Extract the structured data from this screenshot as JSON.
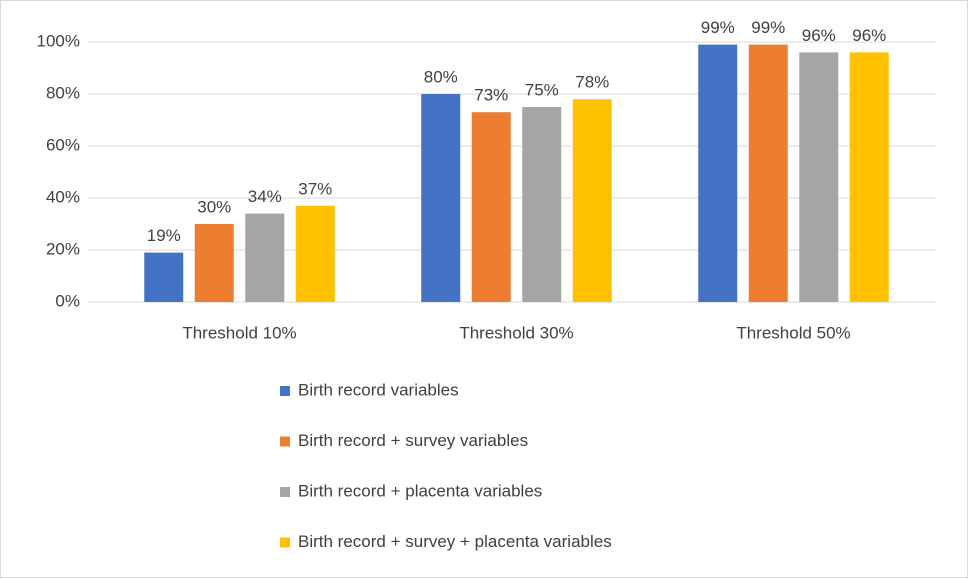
{
  "chart_data": {
    "type": "bar",
    "categories": [
      "Threshold 10%",
      "Threshold 30%",
      "Threshold 50%"
    ],
    "series": [
      {
        "name": "Birth record variables",
        "color": "#4472c4",
        "values": [
          19,
          80,
          99
        ],
        "value_labels": [
          "19%",
          "80%",
          "99%"
        ]
      },
      {
        "name": "Birth record + survey variables",
        "color": "#ed7d31",
        "values": [
          30,
          73,
          99
        ],
        "value_labels": [
          "30%",
          "73%",
          "99%"
        ]
      },
      {
        "name": "Birth record + placenta variables",
        "color": "#a5a5a5",
        "values": [
          34,
          75,
          96
        ],
        "value_labels": [
          "34%",
          "75%",
          "96%"
        ]
      },
      {
        "name": "Birth record + survey + placenta variables",
        "color": "#ffc000",
        "values": [
          37,
          78,
          96
        ],
        "value_labels": [
          "37%",
          "78%",
          "96%"
        ]
      }
    ],
    "ylim": [
      0,
      100
    ],
    "yticks": [
      {
        "value": 0,
        "label": "0%"
      },
      {
        "value": 20,
        "label": "20%"
      },
      {
        "value": 40,
        "label": "40%"
      },
      {
        "value": 60,
        "label": "60%"
      },
      {
        "value": 80,
        "label": "80%"
      },
      {
        "value": 100,
        "label": "100%"
      }
    ],
    "grid": true,
    "legend": "bottom"
  }
}
